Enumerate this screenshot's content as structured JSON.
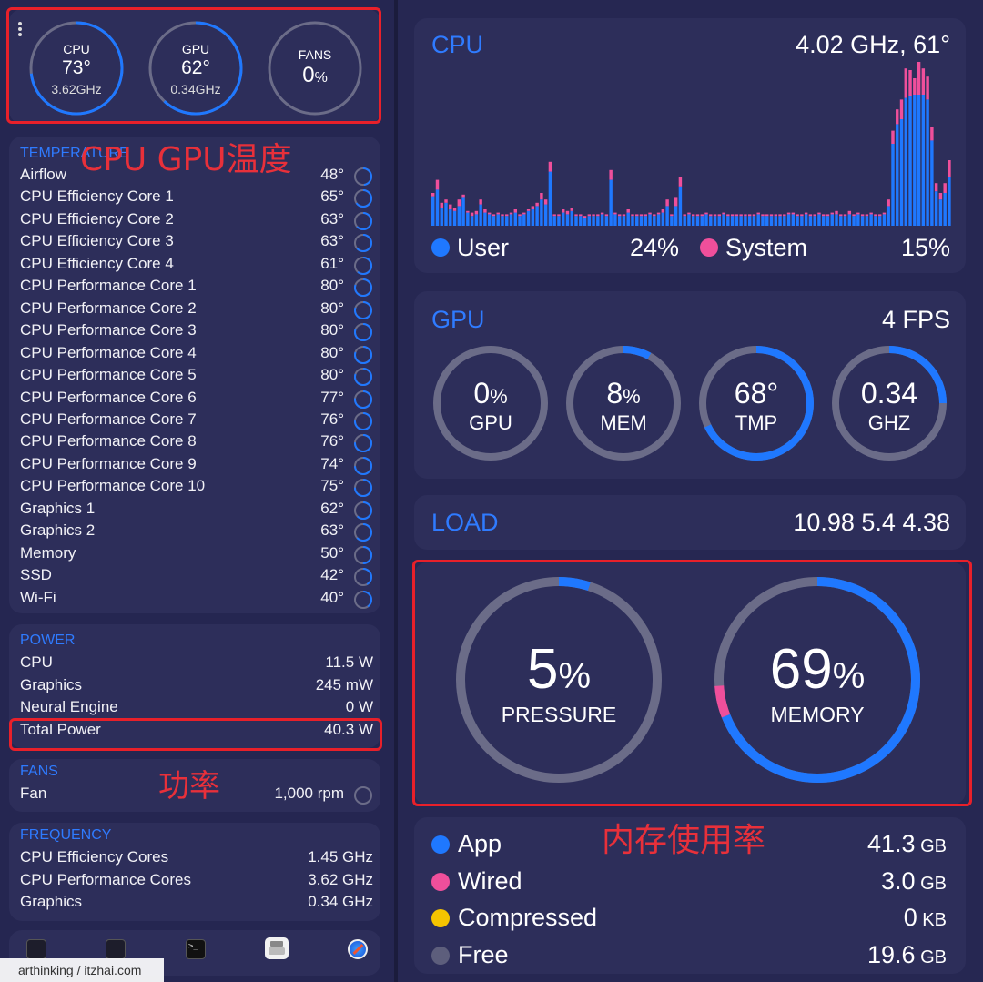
{
  "top_gauges": [
    {
      "name": "CPU",
      "value": "73°",
      "sub": "3.62GHz",
      "fraction": 0.73
    },
    {
      "name": "GPU",
      "value": "62°",
      "sub": "0.34GHz",
      "fraction": 0.62
    },
    {
      "name": "FANS",
      "value": "0",
      "unit": "%",
      "fraction": 0.0
    }
  ],
  "temperature": {
    "title": "TEMPERATURE",
    "items": [
      {
        "label": "Airflow",
        "value": "48°",
        "fraction": 0.48
      },
      {
        "label": "CPU Efficiency Core 1",
        "value": "65°",
        "fraction": 0.65
      },
      {
        "label": "CPU Efficiency Core 2",
        "value": "63°",
        "fraction": 0.63
      },
      {
        "label": "CPU Efficiency Core 3",
        "value": "63°",
        "fraction": 0.63
      },
      {
        "label": "CPU Efficiency Core 4",
        "value": "61°",
        "fraction": 0.61
      },
      {
        "label": "CPU Performance Core 1",
        "value": "80°",
        "fraction": 0.8
      },
      {
        "label": "CPU Performance Core 2",
        "value": "80°",
        "fraction": 0.8
      },
      {
        "label": "CPU Performance Core 3",
        "value": "80°",
        "fraction": 0.8
      },
      {
        "label": "CPU Performance Core 4",
        "value": "80°",
        "fraction": 0.8
      },
      {
        "label": "CPU Performance Core 5",
        "value": "80°",
        "fraction": 0.8
      },
      {
        "label": "CPU Performance Core 6",
        "value": "77°",
        "fraction": 0.77
      },
      {
        "label": "CPU Performance Core 7",
        "value": "76°",
        "fraction": 0.76
      },
      {
        "label": "CPU Performance Core 8",
        "value": "76°",
        "fraction": 0.76
      },
      {
        "label": "CPU Performance Core 9",
        "value": "74°",
        "fraction": 0.74
      },
      {
        "label": "CPU Performance Core 10",
        "value": "75°",
        "fraction": 0.75
      },
      {
        "label": "Graphics 1",
        "value": "62°",
        "fraction": 0.62
      },
      {
        "label": "Graphics 2",
        "value": "63°",
        "fraction": 0.63
      },
      {
        "label": "Memory",
        "value": "50°",
        "fraction": 0.5
      },
      {
        "label": "SSD",
        "value": "42°",
        "fraction": 0.42
      },
      {
        "label": "Wi-Fi",
        "value": "40°",
        "fraction": 0.4
      }
    ]
  },
  "power": {
    "title": "POWER",
    "items": [
      {
        "label": "CPU",
        "value": "11.5 W"
      },
      {
        "label": "Graphics",
        "value": "245 mW"
      },
      {
        "label": "Neural Engine",
        "value": "0 W"
      },
      {
        "label": "Total Power",
        "value": "40.3 W"
      }
    ]
  },
  "fans": {
    "title": "FANS",
    "label": "Fan",
    "value": "1,000 rpm",
    "fraction": 0.0
  },
  "frequency": {
    "title": "FREQUENCY",
    "items": [
      {
        "label": "CPU Efficiency Cores",
        "value": "1.45 GHz"
      },
      {
        "label": "CPU Performance Cores",
        "value": "3.62 GHz"
      },
      {
        "label": "Graphics",
        "value": "0.34 GHz"
      }
    ]
  },
  "dock_icons": [
    "java-app-icon",
    "app-icon",
    "terminal-icon",
    "printer-icon",
    "safari-icon"
  ],
  "watermark": "arthinking / itzhai.com",
  "annotations": {
    "cpu_gpu_temp": "CPU GPU温度",
    "power": "功率",
    "memory_usage": "内存使用率"
  },
  "cpu": {
    "title": "CPU",
    "summary": "4.02 GHz, 61°",
    "legend": [
      {
        "name": "User",
        "value": "24%",
        "color": "#1f78ff"
      },
      {
        "name": "System",
        "value": "15%",
        "color": "#ef4f9b"
      }
    ]
  },
  "gpu": {
    "title": "GPU",
    "fps": "4 FPS",
    "gauges": [
      {
        "value": "0",
        "unit": "%",
        "label": "GPU",
        "fraction": 0.0
      },
      {
        "value": "8",
        "unit": "%",
        "label": "MEM",
        "fraction": 0.08
      },
      {
        "value": "68°",
        "unit": "",
        "label": "TMP",
        "fraction": 0.68
      },
      {
        "value": "0.34",
        "unit": "",
        "label": "GHZ",
        "fraction": 0.25
      }
    ]
  },
  "load": {
    "title": "LOAD",
    "values": "10.98 5.4 4.38"
  },
  "memory": {
    "pressure": {
      "value": "5",
      "unit": "%",
      "label": "PRESSURE",
      "fraction": 0.05
    },
    "usage": {
      "value": "69",
      "unit": "%",
      "label": "MEMORY",
      "fraction": 0.69,
      "wired_fraction": 0.05
    },
    "legend": [
      {
        "name": "App",
        "value": "41.3",
        "unit": "GB",
        "color": "#1f78ff"
      },
      {
        "name": "Wired",
        "value": "3.0",
        "unit": "GB",
        "color": "#ef4f9b"
      },
      {
        "name": "Compressed",
        "value": "0",
        "unit": "KB",
        "color": "#f5c400"
      },
      {
        "name": "Free",
        "value": "19.6",
        "unit": "GB",
        "color": "#5d5e7c"
      }
    ]
  },
  "chart_data": {
    "type": "bar",
    "stacked": true,
    "series": [
      {
        "name": "User",
        "values": [
          18,
          22,
          11,
          14,
          10,
          9,
          12,
          17,
          8,
          6,
          7,
          13,
          8,
          7,
          6,
          7,
          6,
          6,
          7,
          8,
          6,
          7,
          9,
          10,
          12,
          16,
          13,
          33,
          6,
          6,
          8,
          7,
          9,
          6,
          6,
          5,
          6,
          6,
          6,
          7,
          6,
          28,
          7,
          6,
          6,
          8,
          6,
          6,
          6,
          6,
          7,
          6,
          7,
          8,
          12,
          6,
          12,
          24,
          6,
          7,
          6,
          6,
          6,
          7,
          6,
          6,
          6,
          7,
          6,
          6,
          6,
          6,
          6,
          6,
          6,
          7,
          6,
          6,
          6,
          6,
          6,
          6,
          7,
          7,
          6,
          6,
          7,
          6,
          6,
          7,
          6,
          6,
          7,
          7,
          6,
          6,
          7,
          6,
          7,
          6,
          6,
          7,
          6,
          6,
          7,
          12,
          50,
          62,
          65,
          78,
          79,
          80,
          80,
          80,
          77,
          52,
          21,
          16,
          20,
          30
        ]
      },
      {
        "name": "System",
        "values": [
          2,
          6,
          3,
          2,
          3,
          2,
          4,
          2,
          1,
          2,
          2,
          3,
          2,
          1,
          1,
          1,
          1,
          1,
          1,
          2,
          1,
          1,
          1,
          2,
          2,
          4,
          3,
          6,
          1,
          1,
          2,
          2,
          2,
          1,
          1,
          1,
          1,
          1,
          1,
          1,
          1,
          6,
          1,
          1,
          1,
          2,
          1,
          1,
          1,
          1,
          1,
          1,
          1,
          2,
          4,
          1,
          5,
          6,
          1,
          1,
          1,
          1,
          1,
          1,
          1,
          1,
          1,
          1,
          1,
          1,
          1,
          1,
          1,
          1,
          1,
          1,
          1,
          1,
          1,
          1,
          1,
          1,
          1,
          1,
          1,
          1,
          1,
          1,
          1,
          1,
          1,
          1,
          1,
          2,
          1,
          1,
          2,
          1,
          1,
          1,
          1,
          1,
          1,
          1,
          1,
          4,
          8,
          9,
          12,
          18,
          16,
          10,
          20,
          16,
          14,
          8,
          5,
          4,
          6,
          10
        ]
      }
    ],
    "ylim": [
      0,
      100
    ]
  }
}
